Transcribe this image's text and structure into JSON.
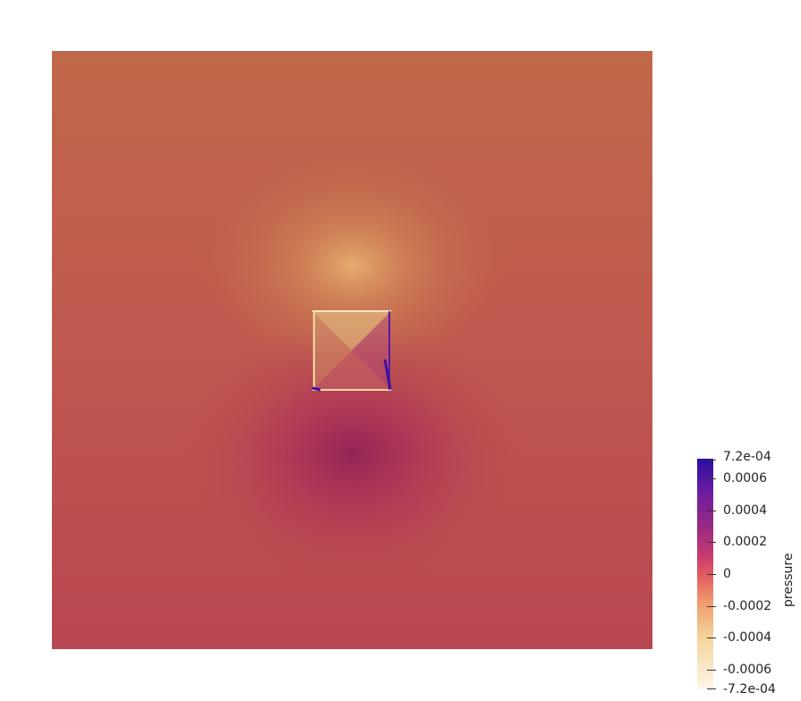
{
  "colorbar": {
    "title": "pressure",
    "ticks": [
      {
        "label": "7.2e-04",
        "value": 0.00072
      },
      {
        "label": "0.0006",
        "value": 0.0006
      },
      {
        "label": "0.0004",
        "value": 0.0004
      },
      {
        "label": "0.0002",
        "value": 0.0002
      },
      {
        "label": "0",
        "value": 0
      },
      {
        "label": "-0.0002",
        "value": -0.0002
      },
      {
        "label": "-0.0004",
        "value": -0.0004
      },
      {
        "label": "-0.0006",
        "value": -0.0006
      },
      {
        "label": "-7.2e-04",
        "value": -0.00072
      }
    ],
    "range": [
      -0.00072,
      0.00072
    ],
    "colormap": [
      "#fff5e8",
      "#f4d59b",
      "#ef9a6d",
      "#e05a62",
      "#c73a6e",
      "#9a2a82",
      "#6a1ca0",
      "#2a0fa0"
    ]
  },
  "field": {
    "background_color": "#be5550",
    "top_color": "#c06a4a",
    "bottom_color": "#b8484f"
  }
}
